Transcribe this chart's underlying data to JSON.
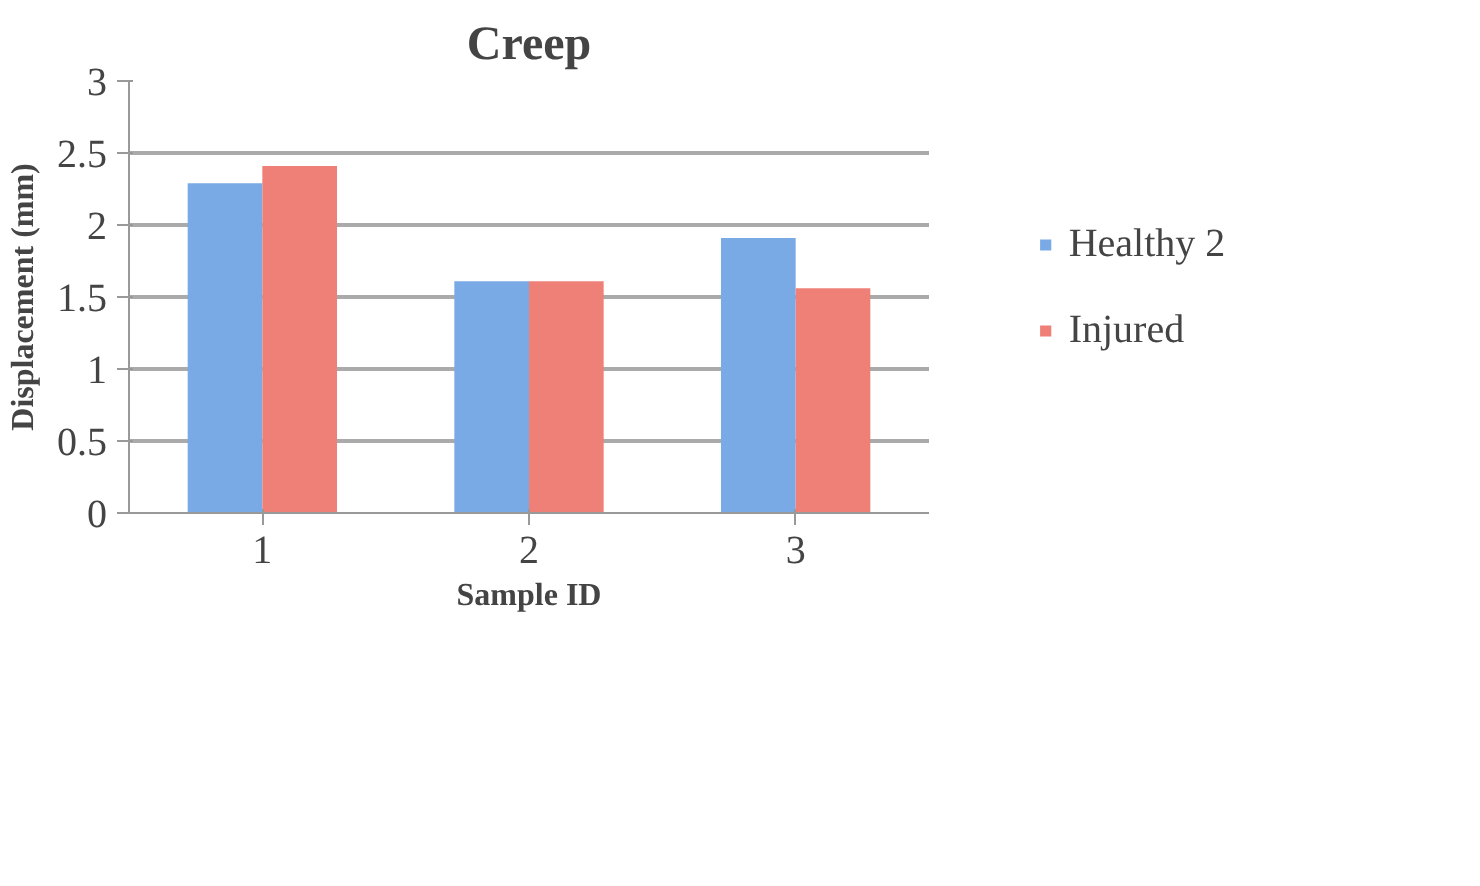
{
  "chart_data": {
    "type": "bar",
    "title": "Creep",
    "xlabel": "Sample ID",
    "ylabel": "Displacement (mm)",
    "categories": [
      "1",
      "2",
      "3"
    ],
    "series": [
      {
        "name": "Healthy 2",
        "color": "#7aaae6",
        "values": [
          2.29,
          1.61,
          1.91
        ]
      },
      {
        "name": "Injured",
        "color": "#ee8078",
        "values": [
          2.41,
          1.61,
          1.56
        ]
      }
    ],
    "ylim": [
      0,
      3
    ],
    "yticks": [
      0,
      0.5,
      1,
      1.5,
      2,
      2.5,
      3
    ],
    "grid": "y",
    "legend": "right"
  }
}
